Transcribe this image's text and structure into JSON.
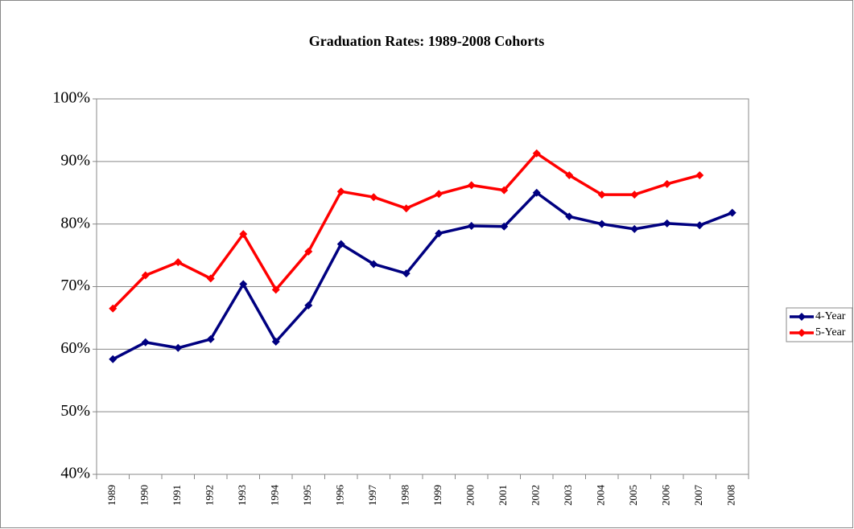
{
  "chart_data": {
    "type": "line",
    "title": "Graduation Rates: 1989-2008 Cohorts",
    "categories": [
      "1989",
      "1990",
      "1991",
      "1992",
      "1993",
      "1994",
      "1995",
      "1996",
      "1997",
      "1998",
      "1999",
      "2000",
      "2001",
      "2002",
      "2003",
      "2004",
      "2005",
      "2006",
      "2007",
      "2008"
    ],
    "series": [
      {
        "name": "4-Year",
        "color": "#000080",
        "values": [
          58.4,
          61.1,
          60.2,
          61.6,
          70.4,
          61.2,
          67.0,
          76.8,
          73.6,
          72.1,
          78.5,
          79.7,
          79.6,
          85.0,
          81.2,
          80.0,
          79.2,
          80.1,
          79.8,
          81.8
        ]
      },
      {
        "name": "5-Year",
        "color": "#ff0000",
        "values": [
          66.5,
          71.8,
          73.9,
          71.3,
          78.4,
          69.5,
          75.6,
          85.2,
          84.3,
          82.5,
          84.8,
          86.2,
          85.4,
          91.3,
          87.8,
          84.7,
          84.7,
          86.4,
          87.8,
          null
        ]
      }
    ],
    "ylim": [
      40,
      100
    ],
    "yticks": [
      {
        "value": 40,
        "label": "40%"
      },
      {
        "value": 50,
        "label": "50%"
      },
      {
        "value": 60,
        "label": "60%"
      },
      {
        "value": 70,
        "label": "70%"
      },
      {
        "value": 80,
        "label": "80%"
      },
      {
        "value": 90,
        "label": "90%"
      },
      {
        "value": 100,
        "label": "100%"
      }
    ],
    "grid": true,
    "legend": "right"
  }
}
